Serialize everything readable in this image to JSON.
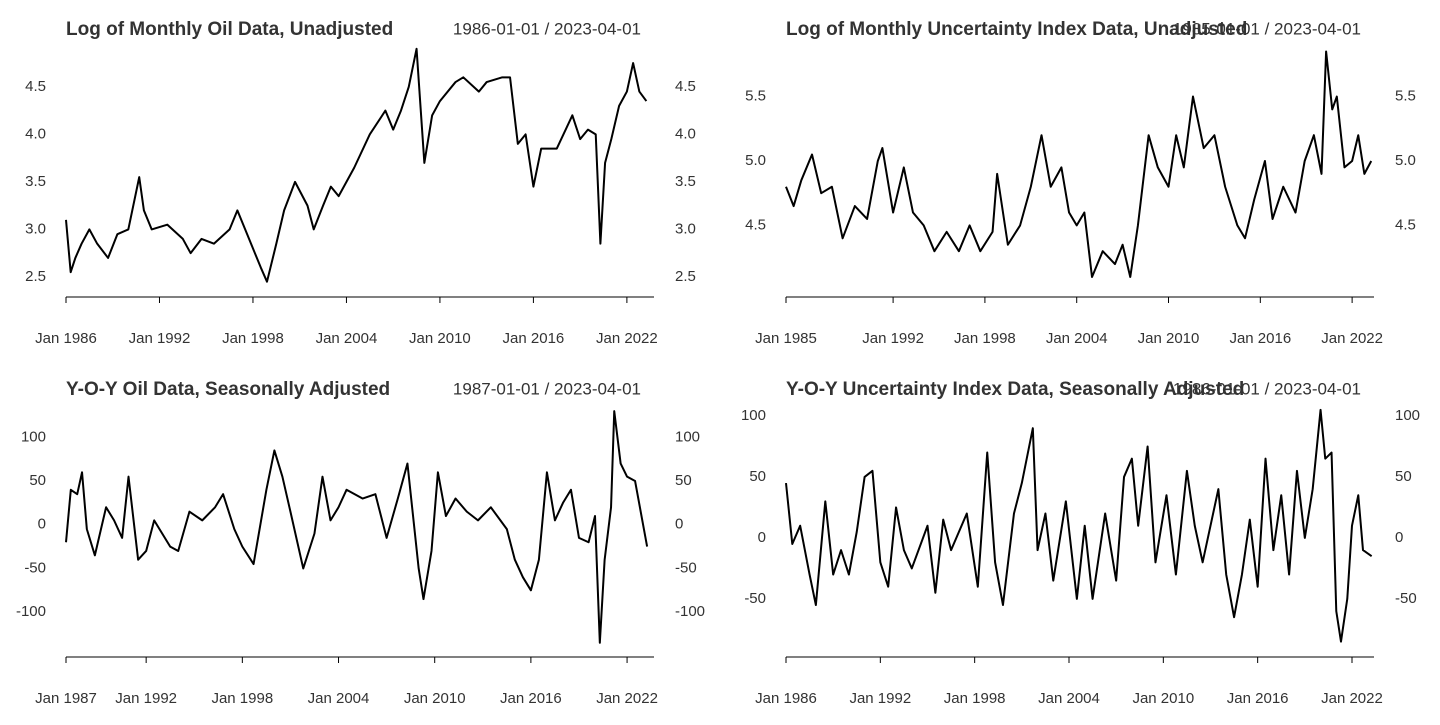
{
  "chart_data": [
    {
      "type": "line",
      "title": "Log of Monthly Oil Data, Unadjusted",
      "subtitle": "1986-01-01 / 2023-04-01",
      "color": "#000000",
      "xlim": [
        1986,
        2023.74
      ],
      "ylim": [
        2.31,
        4.94
      ],
      "xticks": [
        {
          "value": 1986,
          "label": "Jan 1986"
        },
        {
          "value": 1992,
          "label": "Jan 1992"
        },
        {
          "value": 1998,
          "label": "Jan 1998"
        },
        {
          "value": 2004,
          "label": "Jan 2004"
        },
        {
          "value": 2010,
          "label": "Jan 2010"
        },
        {
          "value": 2016,
          "label": "Jan 2016"
        },
        {
          "value": 2022,
          "label": "Jan 2022"
        }
      ],
      "yticks": [
        2.5,
        {
          "value": 3,
          "label": "3.0"
        },
        3.5,
        {
          "value": 4,
          "label": "4.0"
        },
        4.5
      ],
      "x": [
        1986.0,
        1986.3,
        1986.6,
        1987.0,
        1987.5,
        1988.0,
        1988.7,
        1989.3,
        1990.0,
        1990.7,
        1991.0,
        1991.5,
        1992.5,
        1993.5,
        1994.0,
        1994.7,
        1995.5,
        1996.5,
        1997.0,
        1997.5,
        1998.5,
        1998.9,
        1999.5,
        2000.0,
        2000.7,
        2001.5,
        2001.9,
        2002.5,
        2003.0,
        2003.5,
        2004.5,
        2005.5,
        2006.5,
        2007.0,
        2007.5,
        2008.0,
        2008.5,
        2009.0,
        2009.5,
        2010.0,
        2011.0,
        2011.5,
        2012.5,
        2013.0,
        2014.0,
        2014.5,
        2015.0,
        2015.5,
        2016.0,
        2016.5,
        2017.5,
        2018.5,
        2019.0,
        2019.5,
        2020.0,
        2020.3,
        2020.6,
        2021.0,
        2021.5,
        2022.0,
        2022.4,
        2022.8,
        2023.25
      ],
      "values": [
        3.1,
        2.55,
        2.7,
        2.85,
        3.0,
        2.85,
        2.7,
        2.95,
        3.0,
        3.55,
        3.2,
        3.0,
        3.05,
        2.9,
        2.75,
        2.9,
        2.85,
        3.0,
        3.2,
        3.0,
        2.6,
        2.45,
        2.85,
        3.2,
        3.5,
        3.25,
        3.0,
        3.25,
        3.45,
        3.35,
        3.65,
        4.0,
        4.25,
        4.05,
        4.25,
        4.5,
        4.9,
        3.7,
        4.2,
        4.35,
        4.55,
        4.6,
        4.45,
        4.55,
        4.6,
        4.6,
        3.9,
        4.0,
        3.45,
        3.85,
        3.85,
        4.2,
        3.95,
        4.05,
        4.0,
        2.85,
        3.7,
        3.95,
        4.3,
        4.45,
        4.75,
        4.45,
        4.35
      ]
    },
    {
      "type": "line",
      "title": "Log of Monthly Uncertainty Index Data, Unadjusted",
      "subtitle": "1985-01-01 / 2023-04-01",
      "color": "#000000",
      "xlim": [
        1985,
        2023.43
      ],
      "ylim": [
        3.96,
        5.9
      ],
      "xticks": [
        {
          "value": 1985,
          "label": "Jan 1985"
        },
        {
          "value": 1992,
          "label": "Jan 1992"
        },
        {
          "value": 1998,
          "label": "Jan 1998"
        },
        {
          "value": 2004,
          "label": "Jan 2004"
        },
        {
          "value": 2010,
          "label": "Jan 2010"
        },
        {
          "value": 2016,
          "label": "Jan 2016"
        },
        {
          "value": 2022,
          "label": "Jan 2022"
        }
      ],
      "yticks": [
        4.5,
        {
          "value": 5,
          "label": "5.0"
        },
        5.5
      ],
      "x": [
        1985.0,
        1985.5,
        1986.0,
        1986.7,
        1987.3,
        1988.0,
        1988.7,
        1989.5,
        1990.3,
        1991.0,
        1991.3,
        1992.0,
        1992.7,
        1993.3,
        1994.0,
        1994.7,
        1995.5,
        1996.3,
        1997.0,
        1997.7,
        1998.5,
        1998.8,
        1999.5,
        2000.3,
        2001.0,
        2001.7,
        2002.3,
        2003.0,
        2003.5,
        2004.0,
        2004.5,
        2005.0,
        2005.7,
        2006.5,
        2007.0,
        2007.5,
        2008.0,
        2008.7,
        2009.3,
        2010.0,
        2010.5,
        2011.0,
        2011.6,
        2012.3,
        2013.0,
        2013.7,
        2014.5,
        2015.0,
        2015.6,
        2016.3,
        2016.8,
        2017.5,
        2018.3,
        2018.9,
        2019.5,
        2020.0,
        2020.3,
        2020.7,
        2021.0,
        2021.5,
        2022.0,
        2022.4,
        2022.8,
        2023.25
      ],
      "values": [
        4.8,
        4.65,
        4.85,
        5.05,
        4.75,
        4.8,
        4.4,
        4.65,
        4.55,
        5.0,
        5.1,
        4.6,
        4.95,
        4.6,
        4.5,
        4.3,
        4.45,
        4.3,
        4.5,
        4.3,
        4.45,
        4.9,
        4.35,
        4.5,
        4.8,
        5.2,
        4.8,
        4.95,
        4.6,
        4.5,
        4.6,
        4.1,
        4.3,
        4.2,
        4.35,
        4.1,
        4.5,
        5.2,
        4.95,
        4.8,
        5.2,
        4.95,
        5.5,
        5.1,
        5.2,
        4.8,
        4.5,
        4.4,
        4.7,
        5.0,
        4.55,
        4.8,
        4.6,
        5.0,
        5.2,
        4.9,
        5.85,
        5.4,
        5.5,
        4.95,
        5.0,
        5.2,
        4.9,
        5.0
      ]
    },
    {
      "type": "line",
      "title": "Y-O-Y Oil Data, Seasonally Adjusted",
      "subtitle": "1987-01-01 / 2023-04-01",
      "color": "#000000",
      "xlim": [
        1987,
        2023.68
      ],
      "ylim": [
        -149,
        137
      ],
      "xticks": [
        {
          "value": 1987,
          "label": "Jan 1987"
        },
        {
          "value": 1992,
          "label": "Jan 1992"
        },
        {
          "value": 1998,
          "label": "Jan 1998"
        },
        {
          "value": 2004,
          "label": "Jan 2004"
        },
        {
          "value": 2010,
          "label": "Jan 2010"
        },
        {
          "value": 2016,
          "label": "Jan 2016"
        },
        {
          "value": 2022,
          "label": "Jan 2022"
        }
      ],
      "yticks": [
        -100,
        -50,
        0,
        50,
        100
      ],
      "x": [
        1987.0,
        1987.3,
        1987.7,
        1988.0,
        1988.3,
        1988.8,
        1989.5,
        1990.0,
        1990.5,
        1990.9,
        1991.5,
        1992.0,
        1992.5,
        1993.0,
        1993.5,
        1994.0,
        1994.7,
        1995.5,
        1996.3,
        1996.8,
        1997.5,
        1998.0,
        1998.7,
        1999.5,
        2000.0,
        2000.5,
        2001.0,
        2001.8,
        2002.5,
        2003.0,
        2003.5,
        2004.0,
        2004.5,
        2005.5,
        2006.3,
        2007.0,
        2007.7,
        2008.3,
        2009.0,
        2009.3,
        2009.8,
        2010.2,
        2010.7,
        2011.3,
        2012.0,
        2012.7,
        2013.5,
        2014.5,
        2015.0,
        2015.5,
        2016.0,
        2016.5,
        2017.0,
        2017.5,
        2018.0,
        2018.5,
        2019.0,
        2019.6,
        2020.0,
        2020.3,
        2020.6,
        2021.0,
        2021.2,
        2021.6,
        2022.0,
        2022.5,
        2022.9,
        2023.25
      ],
      "values": [
        -20,
        40,
        35,
        60,
        -5,
        -35,
        20,
        5,
        -15,
        55,
        -40,
        -30,
        5,
        -10,
        -25,
        -30,
        15,
        5,
        20,
        35,
        -5,
        -25,
        -45,
        40,
        85,
        55,
        15,
        -50,
        -10,
        55,
        5,
        20,
        40,
        30,
        35,
        -15,
        30,
        70,
        -50,
        -85,
        -30,
        60,
        10,
        30,
        15,
        5,
        20,
        -5,
        -40,
        -60,
        -75,
        -40,
        60,
        5,
        25,
        40,
        -15,
        -20,
        10,
        -135,
        -40,
        20,
        130,
        70,
        55,
        50,
        10,
        -25
      ]
    },
    {
      "type": "line",
      "title": "Y-O-Y Uncertainty Index Data, Seasonally Adjusted",
      "subtitle": "1986-01-01 / 2023-04-01",
      "color": "#000000",
      "xlim": [
        1986,
        2023.4
      ],
      "ylim": [
        -96,
        109
      ],
      "xticks": [
        {
          "value": 1986,
          "label": "Jan 1986"
        },
        {
          "value": 1992,
          "label": "Jan 1992"
        },
        {
          "value": 1998,
          "label": "Jan 1998"
        },
        {
          "value": 2004,
          "label": "Jan 2004"
        },
        {
          "value": 2010,
          "label": "Jan 2010"
        },
        {
          "value": 2016,
          "label": "Jan 2016"
        },
        {
          "value": 2022,
          "label": "Jan 2022"
        }
      ],
      "yticks": [
        -50,
        0,
        50,
        100
      ],
      "x": [
        1986.0,
        1986.4,
        1986.9,
        1987.5,
        1987.9,
        1988.5,
        1989.0,
        1989.5,
        1990.0,
        1990.5,
        1991.0,
        1991.5,
        1992.0,
        1992.5,
        1993.0,
        1993.5,
        1994.0,
        1995.0,
        1995.5,
        1996.0,
        1996.5,
        1997.5,
        1998.2,
        1998.8,
        1999.3,
        1999.8,
        2000.5,
        2001.0,
        2001.7,
        2002.0,
        2002.5,
        2003.0,
        2003.8,
        2004.5,
        2005.0,
        2005.5,
        2006.3,
        2007.0,
        2007.5,
        2008.0,
        2008.4,
        2009.0,
        2009.5,
        2010.2,
        2010.8,
        2011.5,
        2012.0,
        2012.5,
        2013.5,
        2014.0,
        2014.5,
        2015.0,
        2015.5,
        2016.0,
        2016.5,
        2017.0,
        2017.5,
        2018.0,
        2018.5,
        2019.0,
        2019.5,
        2020.0,
        2020.3,
        2020.7,
        2021.0,
        2021.3,
        2021.7,
        2022.0,
        2022.4,
        2022.7,
        2023.25
      ],
      "values": [
        45,
        -5,
        10,
        -30,
        -55,
        30,
        -30,
        -10,
        -30,
        5,
        50,
        55,
        -20,
        -40,
        25,
        -10,
        -25,
        10,
        -45,
        15,
        -10,
        20,
        -40,
        70,
        -20,
        -55,
        20,
        45,
        90,
        -10,
        20,
        -35,
        30,
        -50,
        10,
        -50,
        20,
        -35,
        50,
        65,
        10,
        75,
        -20,
        35,
        -30,
        55,
        10,
        -20,
        40,
        -30,
        -65,
        -30,
        15,
        -40,
        65,
        -10,
        35,
        -30,
        55,
        0,
        40,
        105,
        65,
        70,
        -60,
        -85,
        -50,
        10,
        35,
        -10,
        -15
      ]
    }
  ]
}
